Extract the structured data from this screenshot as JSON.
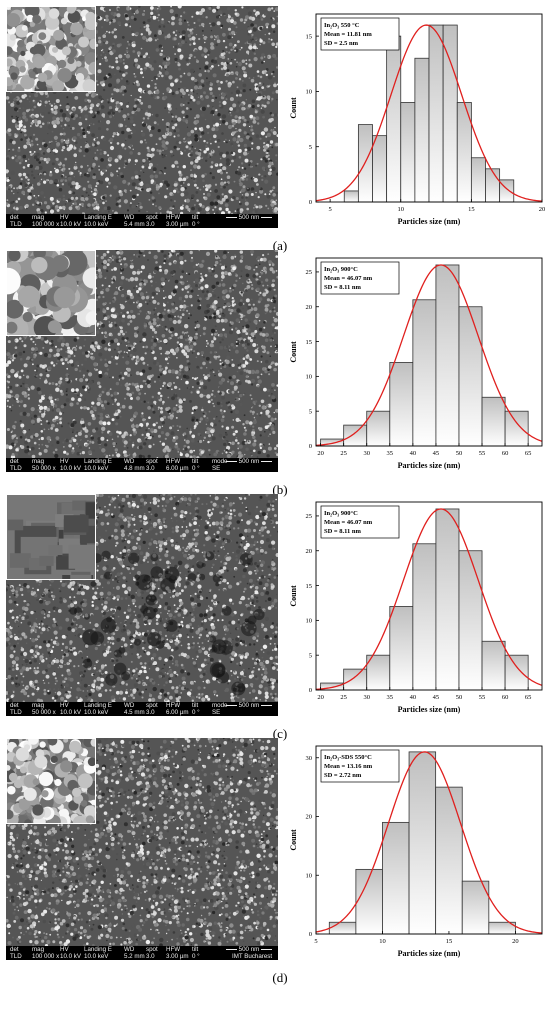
{
  "panels": [
    {
      "label": "(a)",
      "sem_bar": {
        "row1": [
          "det",
          "mag",
          "HV",
          "Landing E",
          "WD",
          "spot",
          "HFW",
          "tilt"
        ],
        "row2": [
          "TLD",
          "100 000 x",
          "10.0 kV",
          "10.0 keV",
          "5.4 mm",
          "3.0",
          "3.00 µm",
          "0 °"
        ],
        "scale": "500 nm"
      },
      "chart_data": {
        "type": "bar",
        "legend_lines": [
          "In₂O₃ 550 °C",
          "Mean = 11.81 nm",
          "SD = 2.5 nm"
        ],
        "xlabel": "Particles size (nm)",
        "ylabel": "Count",
        "xlim": [
          4,
          20
        ],
        "ylim": [
          0,
          17
        ],
        "xticks": [
          5,
          10,
          15,
          20
        ],
        "yticks": [
          0,
          5,
          10,
          15
        ],
        "bin_width": 1,
        "bins": [
          6.5,
          7.5,
          8.5,
          9.5,
          10.5,
          11.5,
          12.5,
          13.5,
          14.5,
          15.5,
          16.5,
          17.5
        ],
        "values": [
          1,
          7,
          6,
          15,
          9,
          13,
          16,
          16,
          9,
          4,
          3,
          2
        ],
        "fit": {
          "mean": 11.81,
          "sd": 2.5,
          "peak": 16
        },
        "colors": {
          "fit": "#e0201e",
          "bar_edge": "#333333"
        }
      }
    },
    {
      "label": "(b)",
      "sem_bar": {
        "row1": [
          "det",
          "mag",
          "HV",
          "Landing E",
          "WD",
          "spot",
          "HFW",
          "tilt",
          "mode"
        ],
        "row2": [
          "TLD",
          "50 000 x",
          "10.0 kV",
          "10.0 keV",
          "4.8 mm",
          "3.0",
          "6.00 µm",
          "0 °",
          "SE"
        ],
        "scale": "500 nm"
      },
      "chart_data": {
        "type": "bar",
        "legend_lines": [
          "In₂O₃ 900°C",
          "Mean = 46.07 nm",
          "SD = 8.11 nm"
        ],
        "xlabel": "Particles size (nm)",
        "ylabel": "Count",
        "xlim": [
          19,
          68
        ],
        "ylim": [
          0,
          27
        ],
        "xticks": [
          20,
          25,
          30,
          35,
          40,
          45,
          50,
          55,
          60,
          65
        ],
        "yticks": [
          0,
          5,
          10,
          15,
          20,
          25
        ],
        "bin_width": 5,
        "bins": [
          22.5,
          27.5,
          32.5,
          37.5,
          42.5,
          47.5,
          52.5,
          57.5,
          62.5
        ],
        "values": [
          1,
          3,
          5,
          12,
          21,
          26,
          20,
          7,
          5
        ],
        "fit": {
          "mean": 46.07,
          "sd": 8.11,
          "peak": 26
        },
        "colors": {
          "fit": "#e0201e",
          "bar_edge": "#333333"
        }
      }
    },
    {
      "label": "(c)",
      "sem_bar": {
        "row1": [
          "det",
          "mag",
          "HV",
          "Landing E",
          "WD",
          "spot",
          "HFW",
          "tilt",
          "mode"
        ],
        "row2": [
          "TLD",
          "50 000 x",
          "10.0 kV",
          "10.0 keV",
          "4.5 mm",
          "3.0",
          "6.00 µm",
          "0 °",
          "SE"
        ],
        "scale": "500 nm"
      },
      "chart_data": {
        "type": "bar",
        "legend_lines": [
          "In₂O₃ 900°C",
          "Mean = 46.07 nm",
          "SD = 8.11 nm"
        ],
        "xlabel": "Particles size (nm)",
        "ylabel": "Count",
        "xlim": [
          19,
          68
        ],
        "ylim": [
          0,
          27
        ],
        "xticks": [
          20,
          25,
          30,
          35,
          40,
          45,
          50,
          55,
          60,
          65
        ],
        "yticks": [
          0,
          5,
          10,
          15,
          20,
          25
        ],
        "bin_width": 5,
        "bins": [
          22.5,
          27.5,
          32.5,
          37.5,
          42.5,
          47.5,
          52.5,
          57.5,
          62.5
        ],
        "values": [
          1,
          3,
          5,
          12,
          21,
          26,
          20,
          7,
          5
        ],
        "fit": {
          "mean": 46.07,
          "sd": 8.11,
          "peak": 26
        },
        "colors": {
          "fit": "#e0201e",
          "bar_edge": "#333333"
        }
      }
    },
    {
      "label": "(d)",
      "sem_bar": {
        "row1": [
          "det",
          "mag",
          "HV",
          "Landing E",
          "WD",
          "spot",
          "HFW",
          "tilt"
        ],
        "row2": [
          "TLD",
          "100 000 x",
          "10.0 kV",
          "10.0 keV",
          "5.2 mm",
          "3.0",
          "3.00 µm",
          "0 °"
        ],
        "scale": "500 nm",
        "institution": "IMT Bucharest"
      },
      "chart_data": {
        "type": "bar",
        "legend_lines": [
          "In₂O₃-SDS 550°C",
          "Mean = 13.16 nm",
          "SD = 2.72 nm"
        ],
        "xlabel": "Particles size (nm)",
        "ylabel": "Count",
        "xlim": [
          5,
          22
        ],
        "ylim": [
          0,
          32
        ],
        "xticks": [
          5,
          10,
          15,
          20
        ],
        "yticks": [
          0,
          10,
          20,
          30
        ],
        "bin_width": 2,
        "bins": [
          7,
          9,
          11,
          13,
          15,
          17,
          19
        ],
        "values": [
          2,
          11,
          19,
          31,
          25,
          9,
          2
        ],
        "fit": {
          "mean": 13.16,
          "sd": 2.72,
          "peak": 31
        },
        "colors": {
          "fit": "#e0201e",
          "bar_edge": "#333333"
        }
      }
    }
  ]
}
